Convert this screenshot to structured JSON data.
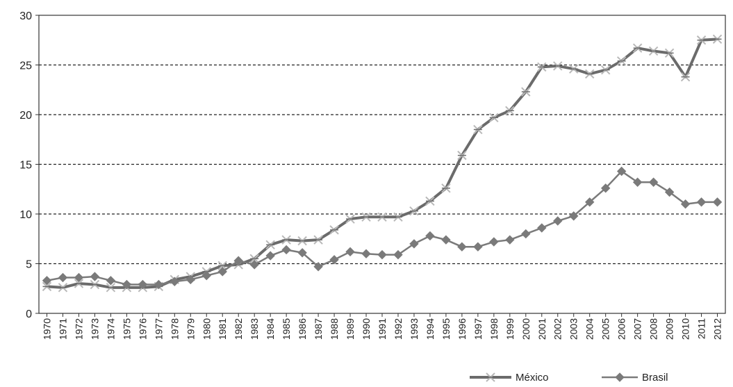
{
  "chart_data": {
    "type": "line",
    "title": "",
    "xlabel": "",
    "ylabel": "",
    "ylim": [
      0,
      30
    ],
    "yticks": [
      0,
      5,
      10,
      15,
      20,
      25,
      30
    ],
    "grid": "horizontal-dashed",
    "legend": "bottom-right",
    "categories": [
      "1970",
      "1971",
      "1972",
      "1973",
      "1974",
      "1975",
      "1976",
      "1977",
      "1978",
      "1979",
      "1980",
      "1981",
      "1982",
      "1983",
      "1984",
      "1985",
      "1986",
      "1987",
      "1988",
      "1989",
      "1990",
      "1991",
      "1992",
      "1993",
      "1994",
      "1995",
      "1996",
      "1997",
      "1998",
      "1999",
      "2000",
      "2001",
      "2002",
      "2003",
      "2004",
      "2005",
      "2006",
      "2007",
      "2008",
      "2009",
      "2010",
      "2011",
      "2012"
    ],
    "series": [
      {
        "name": "México",
        "color": "#6b6b6b",
        "marker": "x",
        "values": [
          2.7,
          2.6,
          3.0,
          2.9,
          2.6,
          2.6,
          2.6,
          2.7,
          3.4,
          3.7,
          4.2,
          4.8,
          4.9,
          5.5,
          6.9,
          7.4,
          7.3,
          7.4,
          8.4,
          9.5,
          9.7,
          9.7,
          9.7,
          10.3,
          11.3,
          12.6,
          15.9,
          18.5,
          19.7,
          20.4,
          22.3,
          24.8,
          24.9,
          24.6,
          24.1,
          24.5,
          25.4,
          26.7,
          26.4,
          26.2,
          23.8,
          27.5,
          27.6
        ]
      },
      {
        "name": "Brasil",
        "color": "#7a7a7a",
        "marker": "diamond",
        "values": [
          3.3,
          3.6,
          3.6,
          3.7,
          3.3,
          2.9,
          2.9,
          2.9,
          3.2,
          3.4,
          3.8,
          4.2,
          5.3,
          4.9,
          5.8,
          6.4,
          6.1,
          4.7,
          5.4,
          6.2,
          6.0,
          5.9,
          5.9,
          7.0,
          7.8,
          7.4,
          6.7,
          6.7,
          7.2,
          7.4,
          8.0,
          8.6,
          9.3,
          9.8,
          11.2,
          12.6,
          14.3,
          13.2,
          13.2,
          12.2,
          11.0,
          11.2,
          11.2
        ]
      }
    ]
  }
}
